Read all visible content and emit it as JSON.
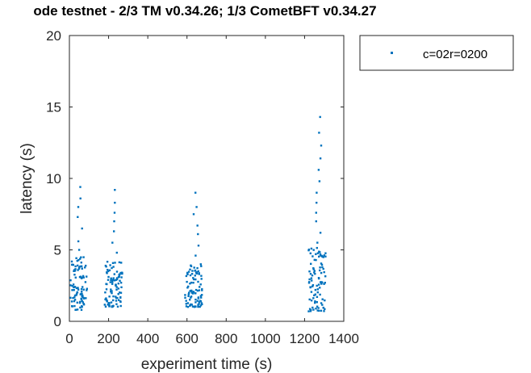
{
  "chart_data": {
    "type": "scatter",
    "title": "ode testnet - 2/3 TM v0.34.26; 1/3 CometBFT v0.34.27",
    "xlabel": "experiment time (s)",
    "ylabel": "latency (s)",
    "xlim": [
      0,
      1400
    ],
    "ylim": [
      0,
      20
    ],
    "xticks": [
      0,
      200,
      400,
      600,
      800,
      1000,
      1200,
      1400
    ],
    "yticks": [
      0,
      5,
      10,
      15,
      20
    ],
    "grid": false,
    "legend_position": "outside-top-right",
    "series": [
      {
        "name": "c=02r=0200",
        "color": "#0072BD",
        "clusters": [
          {
            "x_min": 5,
            "x_max": 90,
            "y_min": 0.8,
            "y_max": 4.5,
            "extra_y": [
              5.0,
              5.6,
              6.5,
              7.3,
              8.0,
              8.6,
              9.4
            ]
          },
          {
            "x_min": 180,
            "x_max": 270,
            "y_min": 1.0,
            "y_max": 4.2,
            "extra_y": [
              4.8,
              5.5,
              6.3,
              7.0,
              7.6,
              8.3,
              9.2
            ]
          },
          {
            "x_min": 590,
            "x_max": 680,
            "y_min": 1.0,
            "y_max": 4.0,
            "extra_y": [
              4.6,
              5.3,
              6.1,
              6.7,
              7.5,
              8.0,
              9.0
            ]
          },
          {
            "x_min": 1220,
            "x_max": 1310,
            "y_min": 0.7,
            "y_max": 5.2,
            "extra_y": [
              5.5,
              6.2,
              7.0,
              7.6,
              8.3,
              9.0,
              9.8,
              10.6,
              11.4,
              12.3,
              13.2,
              14.3
            ]
          }
        ]
      }
    ]
  }
}
